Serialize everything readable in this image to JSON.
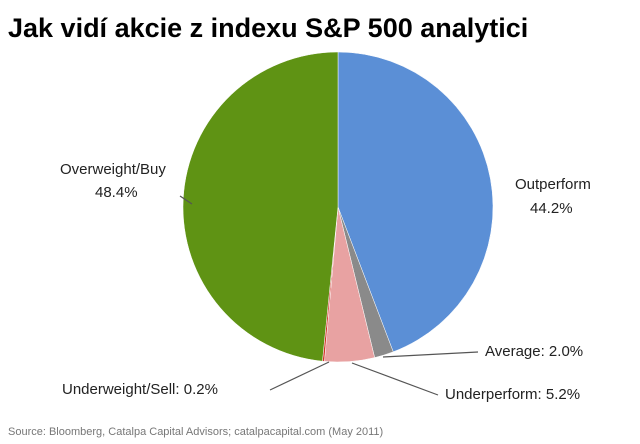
{
  "chart_data": {
    "type": "pie",
    "title": "Jak vidí akcie z indexu S&P 500 analytici",
    "labels": [
      [
        "Outperform",
        "44.2%"
      ],
      [
        "Average: 2.0%"
      ],
      [
        "Underperform: 5.2%"
      ],
      [
        "Underweight/Sell: 0.2%"
      ],
      [
        "Overweight/Buy",
        "48.4%"
      ]
    ],
    "values": [
      44.2,
      2.0,
      5.2,
      0.2,
      48.4
    ],
    "colors": [
      "#5b8fd6",
      "#8a8a8a",
      "#e8a2a2",
      "#d0342a",
      "#5f9314"
    ],
    "source": "Source: Bloomberg, Catalpa Capital Advisors; catalpacapital.com (May 2011)"
  }
}
